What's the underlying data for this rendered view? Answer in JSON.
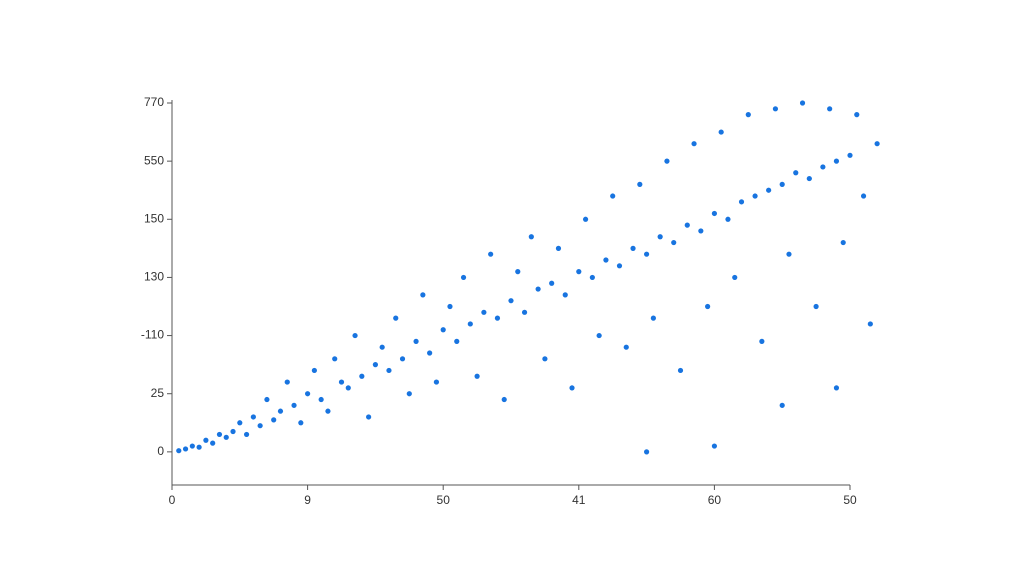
{
  "chart_data": {
    "type": "scatter",
    "color": "#1874e0",
    "xlim": [
      0,
      5
    ],
    "ylim": [
      -0.57,
      6
    ],
    "xticks": [
      0,
      {
        "value": 1,
        "label": "9"
      },
      {
        "value": 2,
        "label": "50"
      },
      {
        "value": 3,
        "label": "41"
      },
      {
        "value": 4,
        "label": "60"
      },
      {
        "value": 5,
        "label": "50"
      }
    ],
    "yticks": [
      0,
      {
        "value": 1,
        "label": "25"
      },
      {
        "value": 2,
        "label": "-110"
      },
      {
        "value": 3,
        "label": "130"
      },
      {
        "value": 4,
        "label": "150"
      },
      {
        "value": 5,
        "label": "550"
      },
      {
        "value": 6,
        "label": "770"
      }
    ],
    "grid": false,
    "x": [
      0.05,
      0.1,
      0.15,
      0.2,
      0.25,
      0.3,
      0.35,
      0.4,
      0.45,
      0.5,
      0.55,
      0.6,
      0.65,
      0.7,
      0.75,
      0.8,
      0.85,
      0.9,
      0.95,
      1.0,
      1.05,
      1.1,
      1.15,
      1.2,
      1.25,
      1.3,
      1.35,
      1.4,
      1.45,
      1.5,
      1.55,
      1.6,
      1.65,
      1.7,
      1.75,
      1.8,
      1.85,
      1.9,
      1.95,
      2.0,
      2.05,
      2.1,
      2.15,
      2.2,
      2.25,
      2.3,
      2.35,
      2.4,
      2.45,
      2.5,
      2.55,
      2.6,
      2.65,
      2.7,
      2.75,
      2.8,
      2.85,
      2.9,
      2.95,
      3.0,
      3.05,
      3.1,
      3.15,
      3.2,
      3.25,
      3.3,
      3.35,
      3.4,
      3.45,
      3.5,
      3.55,
      3.6,
      3.65,
      3.7,
      3.75,
      3.8,
      3.85,
      3.9,
      3.95,
      4.0,
      4.05,
      4.1,
      4.15,
      4.2,
      4.25,
      4.3,
      4.35,
      4.4,
      4.45,
      4.5,
      4.55,
      4.6,
      4.65,
      4.7,
      4.75,
      4.8,
      4.85,
      4.9,
      4.95,
      5.0,
      5.05,
      5.1,
      5.15,
      5.2,
      3.5,
      4.0,
      4.5,
      4.9
    ],
    "values": [
      0.02,
      0.05,
      0.1,
      0.08,
      0.2,
      0.15,
      0.3,
      0.25,
      0.35,
      0.5,
      0.3,
      0.6,
      0.45,
      0.9,
      0.55,
      0.7,
      1.2,
      0.8,
      0.5,
      1.0,
      1.4,
      0.9,
      0.7,
      1.6,
      1.2,
      1.1,
      2.0,
      1.3,
      0.6,
      1.5,
      1.8,
      1.4,
      2.3,
      1.6,
      1.0,
      1.9,
      2.7,
      1.7,
      1.2,
      2.1,
      2.5,
      1.9,
      3.0,
      2.2,
      1.3,
      2.4,
      3.4,
      2.3,
      0.9,
      2.6,
      3.1,
      2.4,
      3.7,
      2.8,
      1.6,
      2.9,
      3.5,
      2.7,
      1.1,
      3.1,
      4.0,
      3.0,
      2.0,
      3.3,
      4.4,
      3.2,
      1.8,
      3.5,
      4.6,
      3.4,
      2.3,
      3.7,
      5.0,
      3.6,
      1.4,
      3.9,
      5.3,
      3.8,
      2.5,
      4.1,
      5.5,
      4.0,
      3.0,
      4.3,
      5.8,
      4.4,
      1.9,
      4.5,
      5.9,
      4.6,
      3.4,
      4.8,
      6.0,
      4.7,
      2.5,
      4.9,
      5.9,
      5.0,
      3.6,
      5.1,
      5.8,
      4.4,
      2.2,
      5.3,
      0.0,
      0.1,
      0.8,
      1.1
    ]
  }
}
